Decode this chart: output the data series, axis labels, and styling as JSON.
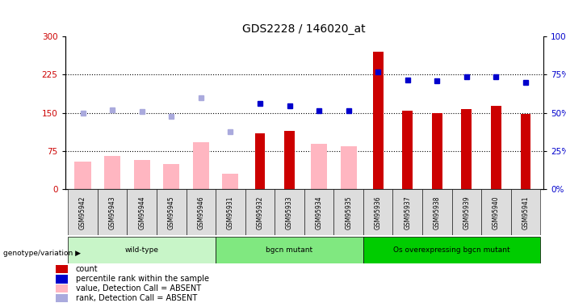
{
  "title": "GDS2228 / 146020_at",
  "samples": [
    "GSM95942",
    "GSM95943",
    "GSM95944",
    "GSM95945",
    "GSM95946",
    "GSM95931",
    "GSM95932",
    "GSM95933",
    "GSM95934",
    "GSM95935",
    "GSM95936",
    "GSM95937",
    "GSM95938",
    "GSM95939",
    "GSM95940",
    "GSM95941"
  ],
  "pink_bar_values": [
    55,
    65,
    57,
    50,
    93,
    30,
    null,
    null,
    90,
    85,
    null,
    null,
    null,
    null,
    null,
    null
  ],
  "red_bar_values": [
    null,
    null,
    null,
    null,
    null,
    null,
    110,
    115,
    null,
    null,
    270,
    155,
    150,
    158,
    163,
    148
  ],
  "blue_sq_values": [
    null,
    null,
    null,
    null,
    null,
    null,
    168,
    163,
    155,
    155,
    230,
    215,
    213,
    220,
    220,
    210
  ],
  "lblue_sq_values": [
    150,
    156,
    152,
    143,
    180,
    113,
    null,
    null,
    null,
    null,
    null,
    null,
    null,
    null,
    null,
    null
  ],
  "groups": [
    {
      "label": "wild-type",
      "start": 0,
      "end": 5,
      "color": "#c8f5c8"
    },
    {
      "label": "bgcn mutant",
      "start": 5,
      "end": 10,
      "color": "#80e880"
    },
    {
      "label": "Os overexpressing bgcn mutant",
      "start": 10,
      "end": 16,
      "color": "#00cc00"
    }
  ],
  "ylim_left": [
    0,
    300
  ],
  "ylim_right": [
    0,
    100
  ],
  "yticks_left": [
    0,
    75,
    150,
    225,
    300
  ],
  "yticks_right": [
    0,
    25,
    50,
    75,
    100
  ],
  "left_tick_color": "#cc0000",
  "right_tick_color": "#0000cc",
  "bar_red": "#cc0000",
  "bar_pink": "#ffb6c1",
  "sq_blue": "#0000cc",
  "sq_lblue": "#aaaadd",
  "hline_positions": [
    75,
    150,
    225
  ],
  "title_fontsize": 10,
  "legend_items": [
    {
      "label": "count",
      "color": "#cc0000"
    },
    {
      "label": "percentile rank within the sample",
      "color": "#0000cc"
    },
    {
      "label": "value, Detection Call = ABSENT",
      "color": "#ffb6c1"
    },
    {
      "label": "rank, Detection Call = ABSENT",
      "color": "#aaaadd"
    }
  ],
  "genotype_label": "genotype/variation"
}
